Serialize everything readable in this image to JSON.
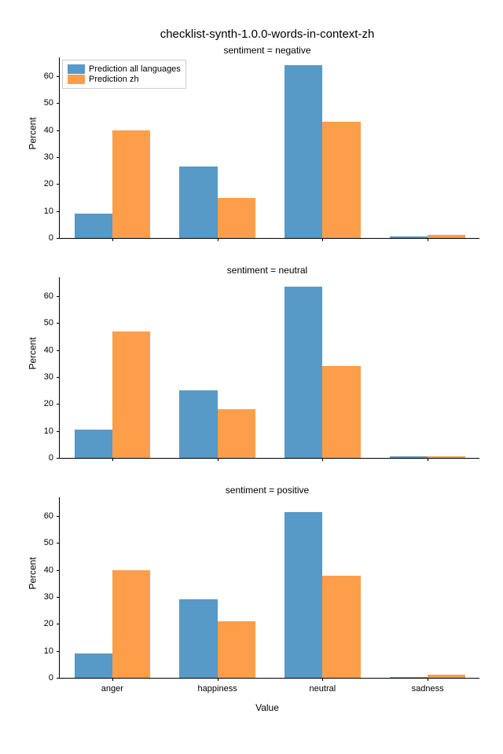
{
  "suptitle": "checklist-synth-1.0.0-words-in-context-zh",
  "ylabel": "Percent",
  "xlabel": "Value",
  "categories": [
    "anger",
    "happiness",
    "neutral",
    "sadness"
  ],
  "legend": [
    {
      "label": "Prediction all languages",
      "color": "#5799c7"
    },
    {
      "label": "Prediction zh",
      "color": "#ff9e4a"
    }
  ],
  "ylim": [
    0,
    67
  ],
  "yticks": [
    0,
    10,
    20,
    30,
    40,
    50,
    60
  ],
  "bar_width": 0.36,
  "colors": {
    "all": "#5799c7",
    "zh": "#ff9e4a"
  },
  "subplots": [
    {
      "title": "sentiment = negative",
      "show_xticks": false,
      "show_xlabel": false,
      "show_legend": true,
      "series": {
        "all": [
          9,
          26.5,
          64,
          0.6
        ],
        "zh": [
          40,
          15,
          43,
          1.2
        ]
      }
    },
    {
      "title": "sentiment = neutral",
      "show_xticks": false,
      "show_xlabel": false,
      "show_legend": false,
      "series": {
        "all": [
          10.5,
          25,
          63.5,
          0.6
        ],
        "zh": [
          47,
          18,
          34,
          0.6
        ]
      }
    },
    {
      "title": "sentiment = positive",
      "show_xticks": true,
      "show_xlabel": true,
      "show_legend": false,
      "series": {
        "all": [
          9,
          29,
          61.5,
          0.4
        ],
        "zh": [
          40,
          21,
          38,
          1.2
        ]
      }
    }
  ]
}
